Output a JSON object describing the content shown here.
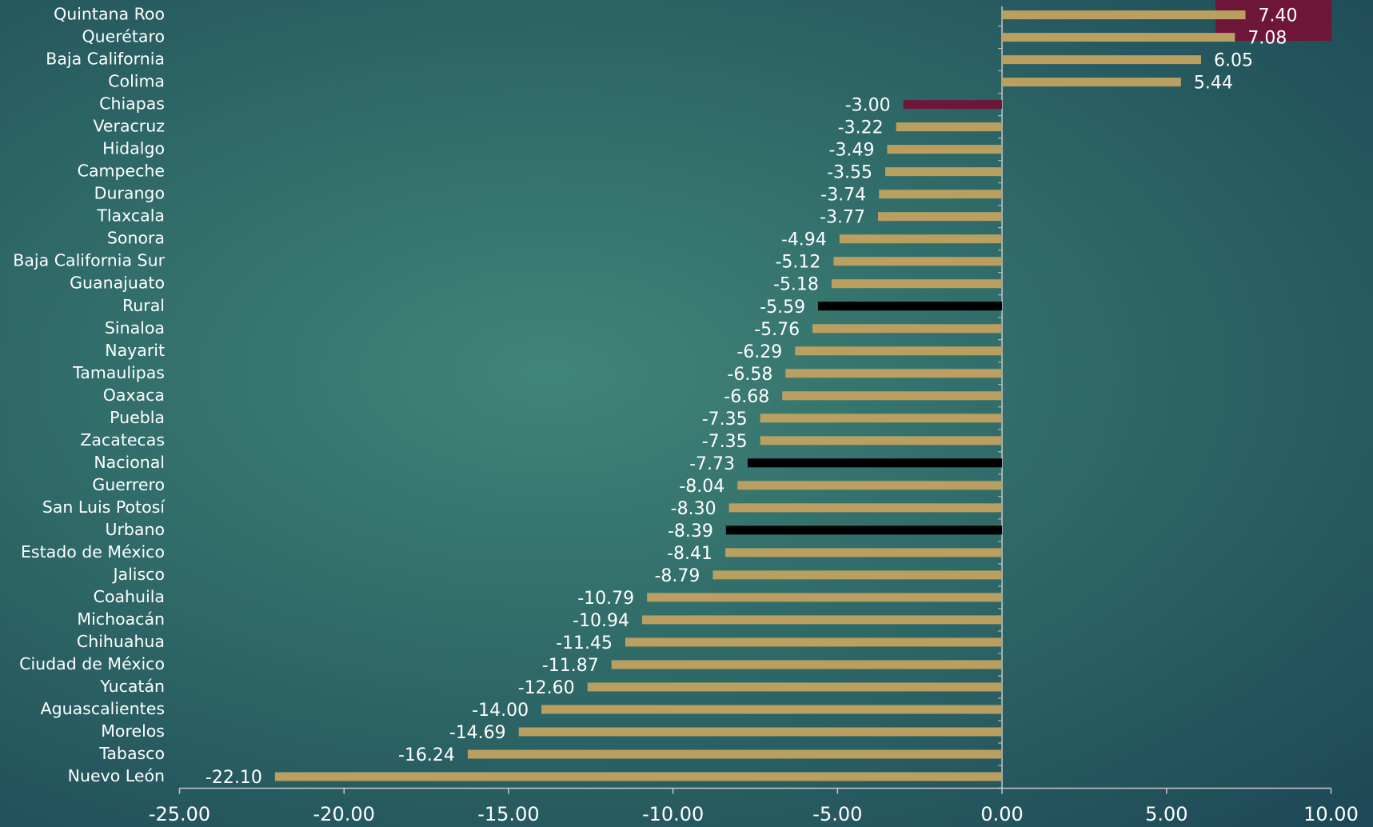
{
  "chart_data": {
    "type": "bar",
    "orientation": "horizontal",
    "categories": [
      "Quintana Roo",
      "Querétaro",
      "Baja California",
      "Colima",
      "Chiapas",
      "Veracruz",
      "Hidalgo",
      "Campeche",
      "Durango",
      "Tlaxcala",
      "Sonora",
      "Baja California Sur",
      "Guanajuato",
      "Rural",
      "Sinaloa",
      "Nayarit",
      "Tamaulipas",
      "Oaxaca",
      "Puebla",
      "Zacatecas",
      "Nacional",
      "Guerrero",
      "San Luis Potosí",
      "Urbano",
      "Estado de México",
      "Jalisco",
      "Coahuila",
      "Michoacán",
      "Chihuahua",
      "Ciudad de México",
      "Yucatán",
      "Aguascalientes",
      "Morelos",
      "Tabasco",
      "Nuevo León"
    ],
    "values": [
      7.4,
      7.08,
      6.05,
      5.44,
      -3,
      -3.22,
      -3.49,
      -3.55,
      -3.74,
      -3.77,
      -4.94,
      -5.12,
      -5.18,
      -5.59,
      -5.76,
      -6.29,
      -6.58,
      -6.68,
      -7.35,
      -7.35,
      -7.73,
      -8.04,
      -8.3,
      -8.39,
      -8.41,
      -8.79,
      -10.79,
      -10.94,
      -11.45,
      -11.87,
      -12.6,
      -14,
      -14.69,
      -16.24,
      -22.1
    ],
    "value_labels": [
      "7.40",
      "7.08",
      "6.05",
      "5.44",
      "-3.00",
      "-3.22",
      "-3.49",
      "-3.55",
      "-3.74",
      "-3.77",
      "-4.94",
      "-5.12",
      "-5.18",
      "-5.59",
      "-5.76",
      "-6.29",
      "-6.58",
      "-6.68",
      "-7.35",
      "-7.35",
      "-7.73",
      "-8.04",
      "-8.30",
      "-8.39",
      "-8.41",
      "-8.79",
      "-10.79",
      "-10.94",
      "-11.45",
      "-11.87",
      "-12.60",
      "-14.00",
      "-14.69",
      "-16.24",
      "-22.10"
    ],
    "colors": [
      "#b9a060",
      "#b9a060",
      "#b9a060",
      "#b9a060",
      "#6e1638",
      "#b9a060",
      "#b9a060",
      "#b9a060",
      "#b9a060",
      "#b9a060",
      "#b9a060",
      "#b9a060",
      "#b9a060",
      "#000000",
      "#b9a060",
      "#b9a060",
      "#b9a060",
      "#b9a060",
      "#b9a060",
      "#b9a060",
      "#000000",
      "#b9a060",
      "#b9a060",
      "#000000",
      "#b9a060",
      "#b9a060",
      "#b9a060",
      "#b9a060",
      "#b9a060",
      "#b9a060",
      "#b9a060",
      "#b9a060",
      "#b9a060",
      "#b9a060",
      "#b9a060"
    ],
    "xlim": [
      -25,
      10
    ],
    "xticks": [
      {
        "value": -25,
        "label": "-25.00"
      },
      {
        "value": -20,
        "label": "-20.00"
      },
      {
        "value": -15,
        "label": "-15.00"
      },
      {
        "value": -10,
        "label": "-10.00"
      },
      {
        "value": -5,
        "label": "-5.00"
      },
      {
        "value": 0,
        "label": "0.00"
      },
      {
        "value": 5,
        "label": "5.00"
      },
      {
        "value": 10,
        "label": "10.00"
      }
    ]
  }
}
